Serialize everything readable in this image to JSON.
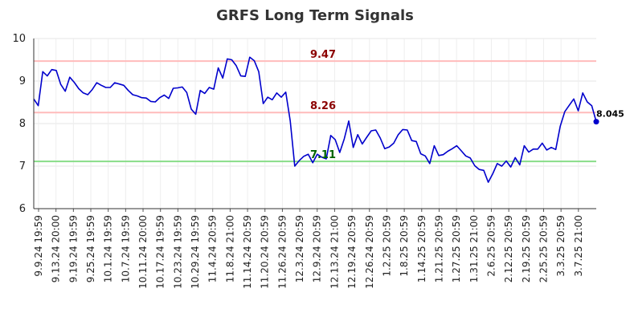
{
  "chart_data": {
    "type": "line",
    "title": "GRFS Long Term Signals",
    "xlabel": "",
    "ylabel": "",
    "ylim": [
      6,
      10
    ],
    "yticks": [
      "6",
      "7",
      "8",
      "9",
      "10"
    ],
    "grid": true,
    "x_tick_labels": [
      "9.9.24 19:59",
      "9.13.24 20:00",
      "9.19.24 19:59",
      "9.25.24 19:59",
      "10.1.24 19:59",
      "10.7.24 19:59",
      "10.11.24 20:00",
      "10.17.24 19:59",
      "10.23.24 19:59",
      "10.29.24 19:59",
      "11.4.24 20:59",
      "11.8.24 21:00",
      "11.14.24 20:59",
      "11.20.24 20:59",
      "11.26.24 20:59",
      "12.3.24 20:59",
      "12.9.24 20:59",
      "12.13.24 21:00",
      "12.19.24 20:59",
      "12.26.24 20:59",
      "1.2.25 20:59",
      "1.8.25 20:59",
      "1.14.25 20:59",
      "1.21.25 20:59",
      "1.27.25 20:59",
      "1.31.25 21:00",
      "2.6.25 20:59",
      "2.12.25 20:59",
      "2.19.25 20:59",
      "2.25.25 20:59",
      "3.3.25 20:59",
      "3.7.25 21:00"
    ],
    "series": [
      {
        "values": [
          8.58,
          8.42,
          9.22,
          9.12,
          9.27,
          9.25,
          8.92,
          8.76,
          9.09,
          8.97,
          8.82,
          8.72,
          8.68,
          8.8,
          8.96,
          8.9,
          8.85,
          8.85,
          8.96,
          8.93,
          8.9,
          8.78,
          8.68,
          8.65,
          8.61,
          8.6,
          8.52,
          8.51,
          8.61,
          8.67,
          8.59,
          8.83,
          8.84,
          8.86,
          8.73,
          8.34,
          8.22,
          8.78,
          8.71,
          8.85,
          8.81,
          9.31,
          9.07,
          9.52,
          9.5,
          9.36,
          9.12,
          9.11,
          9.56,
          9.48,
          9.22,
          8.47,
          8.62,
          8.56,
          8.72,
          8.62,
          8.74,
          8.06,
          7.0,
          7.13,
          7.23,
          7.28,
          7.08,
          7.28,
          7.21,
          7.17,
          7.72,
          7.62,
          7.32,
          7.64,
          8.06,
          7.44,
          7.74,
          7.52,
          7.68,
          7.83,
          7.85,
          7.66,
          7.41,
          7.45,
          7.54,
          7.74,
          7.86,
          7.85,
          7.6,
          7.58,
          7.29,
          7.24,
          7.06,
          7.48,
          7.25,
          7.27,
          7.35,
          7.41,
          7.48,
          7.36,
          7.24,
          7.19,
          7.01,
          6.92,
          6.9,
          6.62,
          6.82,
          7.06,
          7.0,
          7.12,
          6.98,
          7.2,
          7.03,
          7.48,
          7.33,
          7.4,
          7.4,
          7.54,
          7.38,
          7.44,
          7.39,
          7.94,
          8.28,
          8.43,
          8.58,
          8.3,
          8.72,
          8.51,
          8.42,
          8.045
        ],
        "color": "#0000cc"
      }
    ],
    "hlines": [
      {
        "value": 9.47,
        "label": "9.47",
        "color": "#ffbbbb",
        "label_color": "#8b0000"
      },
      {
        "value": 8.26,
        "label": "8.26",
        "color": "#ffbbbb",
        "label_color": "#8b0000"
      },
      {
        "value": 7.11,
        "label": "7.11",
        "color": "#88dd88",
        "label_color": "#006400"
      }
    ],
    "last_value_label": "8.045"
  }
}
